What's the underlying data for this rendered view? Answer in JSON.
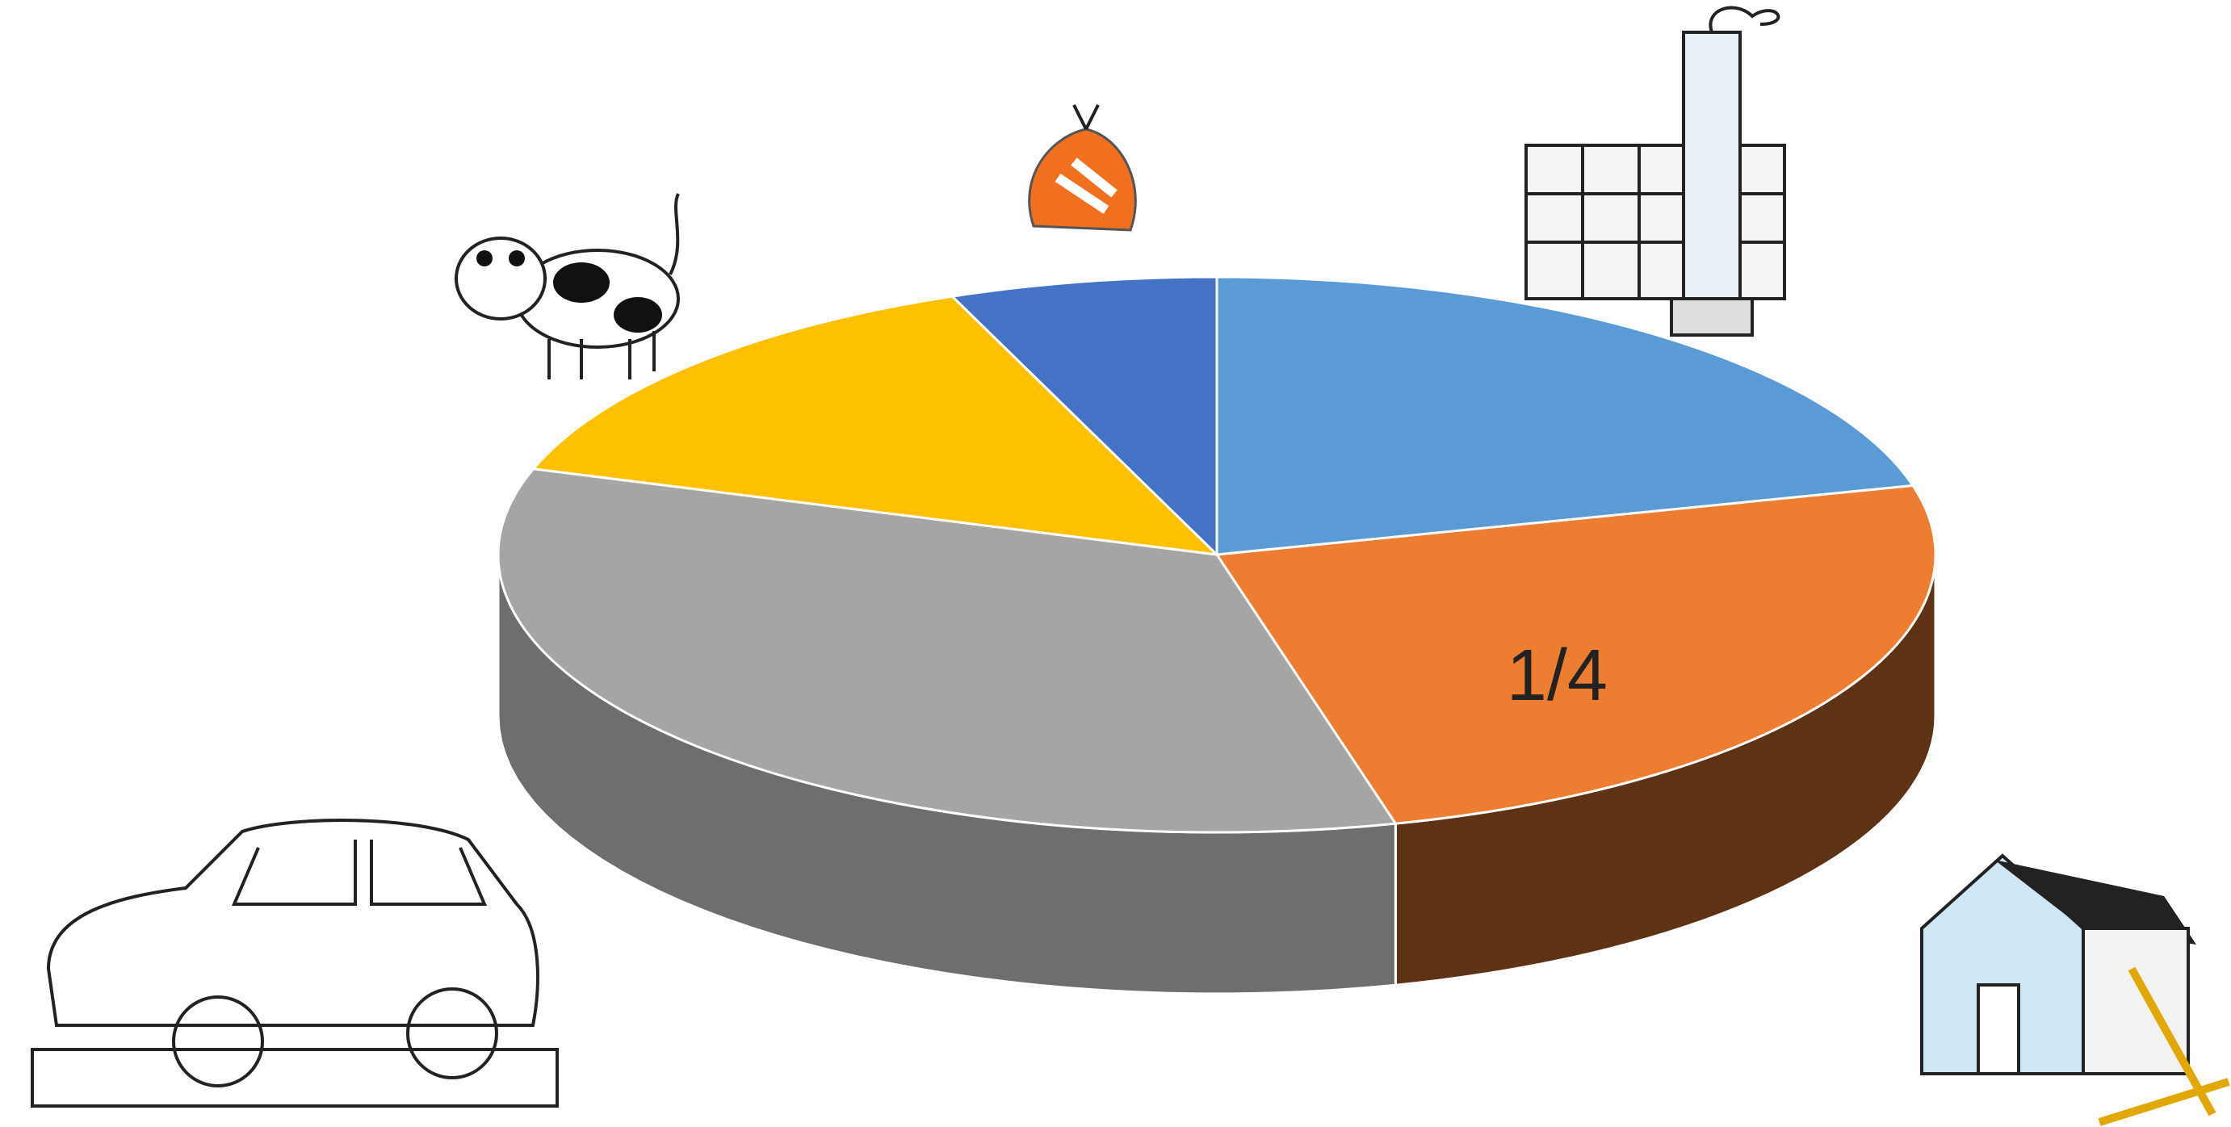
{
  "chart_data": {
    "type": "pie",
    "start_angle": 0,
    "direction": "clockwise",
    "values": [
      21,
      25,
      34,
      14,
      6
    ],
    "value_labels": [
      null,
      "1/4",
      null,
      null,
      null
    ],
    "colors": [
      "#5b9bd5",
      "#ed7d31",
      "#a5a5a5",
      "#ffc000",
      "#4472c4"
    ],
    "side_colors": [
      "#3c6a94",
      "#5e3214",
      "#6e6e6e",
      "#a07800",
      "#2c4a80"
    ]
  }
}
